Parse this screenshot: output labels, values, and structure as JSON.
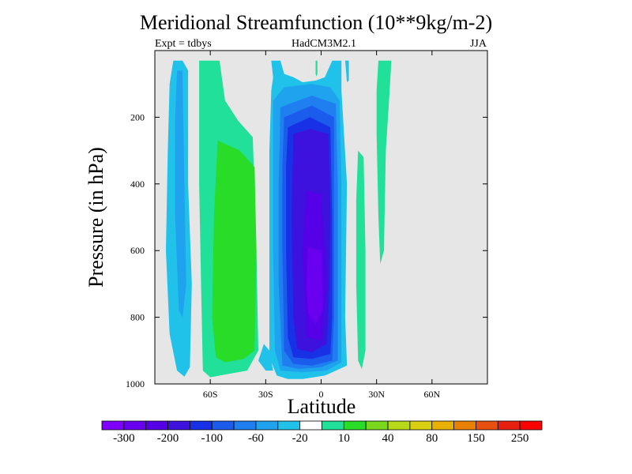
{
  "chart_data": {
    "type": "contour",
    "title": "Meridional Streamfunction (10**9kg/m-2)",
    "subtitle_left": "Expt = tdbys",
    "subtitle_center": "HadCM3M2.1",
    "subtitle_right": "JJA",
    "xlabel": "Latitude",
    "ylabel": "Pressure (in hPa)",
    "xlim": [
      -90,
      90
    ],
    "ylim": [
      1000,
      0
    ],
    "y_reversed": true,
    "xticks": [
      {
        "value": -60,
        "label": "60S"
      },
      {
        "value": -30,
        "label": "30S"
      },
      {
        "value": 0,
        "label": "0"
      },
      {
        "value": 30,
        "label": "30N"
      },
      {
        "value": 60,
        "label": "60N"
      }
    ],
    "yticks": [
      {
        "value": 200,
        "label": "200"
      },
      {
        "value": 400,
        "label": "400"
      },
      {
        "value": 600,
        "label": "600"
      },
      {
        "value": 800,
        "label": "800"
      },
      {
        "value": 1000,
        "label": "1000"
      }
    ],
    "background_color": "#e6e6e6",
    "colorbar": {
      "colors": [
        "#7f00ff",
        "#6a00f0",
        "#5500e6",
        "#3c12dc",
        "#1830e6",
        "#1c5cec",
        "#1f7ff0",
        "#20a3ee",
        "#20c2ea",
        "#ffffff",
        "#20e09a",
        "#28dc28",
        "#7ad81c",
        "#b8d81a",
        "#d8d010",
        "#e8b000",
        "#e88000",
        "#e85010",
        "#e82010",
        "#ff0000"
      ],
      "labels": [
        {
          "after_box": 1,
          "text": "-300"
        },
        {
          "after_box": 3,
          "text": "-200"
        },
        {
          "after_box": 5,
          "text": "-100"
        },
        {
          "after_box": 7,
          "text": "-60"
        },
        {
          "after_box": 9,
          "text": "-20"
        },
        {
          "after_box": 11,
          "text": "10"
        },
        {
          "after_box": 13,
          "text": "40"
        },
        {
          "after_box": 15,
          "text": "80"
        },
        {
          "after_box": 17,
          "text": "150"
        },
        {
          "after_box": 19,
          "text": "250"
        }
      ]
    },
    "contours": [
      {
        "fill": "#20c2ea",
        "outline": [
          [
            -80,
            30
          ],
          [
            -75,
            30
          ],
          [
            -72,
            60
          ],
          [
            -72,
            400
          ],
          [
            -70,
            700
          ],
          [
            -71,
            950
          ],
          [
            -74,
            978
          ],
          [
            -78,
            960
          ],
          [
            -82,
            850
          ],
          [
            -84,
            600
          ],
          [
            -83,
            300
          ],
          [
            -82,
            100
          ]
        ]
      },
      {
        "fill": "#20a3ee",
        "outline": [
          [
            -78,
            60
          ],
          [
            -75,
            60
          ],
          [
            -74,
            400
          ],
          [
            -73,
            700
          ],
          [
            -75,
            800
          ],
          [
            -77,
            780
          ],
          [
            -79,
            500
          ],
          [
            -79,
            200
          ]
        ]
      },
      {
        "fill": "#20e09a",
        "outline": [
          [
            -66,
            30
          ],
          [
            -55,
            30
          ],
          [
            -52,
            150
          ],
          [
            -45,
            210
          ],
          [
            -37,
            260
          ],
          [
            -35,
            600
          ],
          [
            -34,
            900
          ],
          [
            -40,
            960
          ],
          [
            -50,
            970
          ],
          [
            -60,
            980
          ],
          [
            -64,
            960
          ],
          [
            -65,
            700
          ],
          [
            -66,
            400
          ],
          [
            -66,
            200
          ]
        ]
      },
      {
        "fill": "#28dc28",
        "outline": [
          [
            -56,
            270
          ],
          [
            -44,
            300
          ],
          [
            -36,
            350
          ],
          [
            -35,
            600
          ],
          [
            -36,
            900
          ],
          [
            -42,
            925
          ],
          [
            -52,
            935
          ],
          [
            -57,
            920
          ],
          [
            -59,
            800
          ],
          [
            -58,
            500
          ]
        ]
      },
      {
        "fill": "#20c2ea",
        "outline": [
          [
            -34,
            930
          ],
          [
            -30,
            960
          ],
          [
            -26,
            960
          ],
          [
            -28,
            900
          ],
          [
            -31,
            880
          ]
        ]
      },
      {
        "fill": "#20c2ea",
        "outline": [
          [
            -27,
            30
          ],
          [
            -22,
            30
          ],
          [
            -20,
            70
          ],
          [
            -15,
            80
          ],
          [
            -10,
            95
          ],
          [
            -3,
            90
          ],
          [
            2,
            80
          ],
          [
            6,
            30
          ],
          [
            11,
            30
          ],
          [
            11,
            120
          ],
          [
            14,
            400
          ],
          [
            13,
            800
          ],
          [
            14,
            945
          ],
          [
            8,
            960
          ],
          [
            2,
            975
          ],
          [
            -10,
            985
          ],
          [
            -18,
            985
          ],
          [
            -24,
            975
          ],
          [
            -28,
            920
          ],
          [
            -28,
            600
          ],
          [
            -28,
            300
          ],
          [
            -27,
            120
          ],
          [
            -26,
            80
          ]
        ]
      },
      {
        "fill": "#20a3ee",
        "outline": [
          [
            -26,
            150
          ],
          [
            -20,
            110
          ],
          [
            -5,
            100
          ],
          [
            5,
            110
          ],
          [
            10,
            150
          ],
          [
            11,
            400
          ],
          [
            11,
            800
          ],
          [
            11,
            935
          ],
          [
            3,
            960
          ],
          [
            -10,
            965
          ],
          [
            -22,
            960
          ],
          [
            -25,
            900
          ],
          [
            -26,
            600
          ],
          [
            -26,
            300
          ]
        ]
      },
      {
        "fill": "#1f7ff0",
        "outline": [
          [
            -22,
            170
          ],
          [
            -5,
            135
          ],
          [
            8,
            160
          ],
          [
            9,
            400
          ],
          [
            9,
            800
          ],
          [
            9,
            930
          ],
          [
            0,
            950
          ],
          [
            -12,
            955
          ],
          [
            -21,
            945
          ],
          [
            -23,
            700
          ],
          [
            -23,
            400
          ]
        ]
      },
      {
        "fill": "#1c5cec",
        "outline": [
          [
            -20,
            200
          ],
          [
            -5,
            165
          ],
          [
            7,
            200
          ],
          [
            7,
            500
          ],
          [
            7,
            800
          ],
          [
            6,
            930
          ],
          [
            -5,
            945
          ],
          [
            -15,
            940
          ],
          [
            -20,
            900
          ],
          [
            -21,
            600
          ],
          [
            -21,
            350
          ]
        ]
      },
      {
        "fill": "#1830e6",
        "outline": [
          [
            -18,
            230
          ],
          [
            -6,
            200
          ],
          [
            5,
            230
          ],
          [
            6,
            500
          ],
          [
            6,
            800
          ],
          [
            5,
            910
          ],
          [
            -5,
            925
          ],
          [
            -15,
            920
          ],
          [
            -18,
            860
          ],
          [
            -19,
            600
          ],
          [
            -19,
            350
          ]
        ]
      },
      {
        "fill": "#3c12dc",
        "outline": [
          [
            -15,
            250
          ],
          [
            -6,
            235
          ],
          [
            4,
            250
          ],
          [
            5,
            500
          ],
          [
            4,
            780
          ],
          [
            3,
            880
          ],
          [
            -5,
            905
          ],
          [
            -13,
            895
          ],
          [
            -15,
            800
          ],
          [
            -16,
            500
          ]
        ]
      },
      {
        "fill": "#5500e6",
        "outline": [
          [
            -8,
            420
          ],
          [
            0,
            430
          ],
          [
            3,
            700
          ],
          [
            0,
            870
          ],
          [
            -8,
            860
          ],
          [
            -10,
            600
          ]
        ]
      },
      {
        "fill": "#6a00f0",
        "outline": [
          [
            -7,
            590
          ],
          [
            0,
            600
          ],
          [
            1,
            780
          ],
          [
            -3,
            820
          ],
          [
            -7,
            790
          ],
          [
            -8,
            700
          ]
        ]
      },
      {
        "fill": "#20c2ea",
        "outline": [
          [
            13,
            30
          ],
          [
            15,
            30
          ],
          [
            15,
            90
          ],
          [
            14,
            95
          ]
        ]
      },
      {
        "fill": "#20e09a",
        "outline": [
          [
            -3,
            30
          ],
          [
            -2,
            30
          ],
          [
            -2,
            70
          ],
          [
            -2.5,
            78
          ],
          [
            -3,
            70
          ]
        ]
      },
      {
        "fill": "#20e09a",
        "outline": [
          [
            20,
            300
          ],
          [
            23,
            320
          ],
          [
            24,
            600
          ],
          [
            24,
            900
          ],
          [
            22,
            955
          ],
          [
            20,
            930
          ],
          [
            19,
            700
          ],
          [
            19,
            450
          ]
        ]
      },
      {
        "fill": "#20e09a",
        "outline": [
          [
            31,
            30
          ],
          [
            38,
            30
          ],
          [
            37,
            130
          ],
          [
            35,
            300
          ],
          [
            34,
            600
          ],
          [
            32,
            640
          ],
          [
            31,
            500
          ],
          [
            30,
            250
          ],
          [
            30,
            120
          ]
        ]
      }
    ]
  }
}
